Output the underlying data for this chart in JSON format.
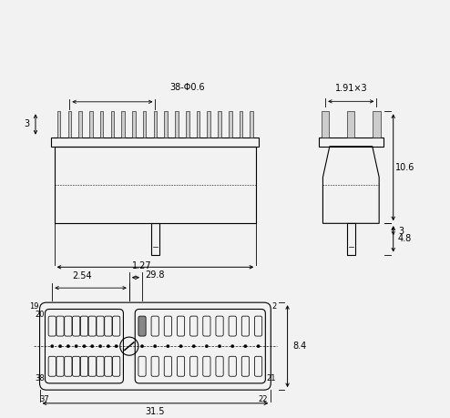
{
  "bg_color": "#f2f2f2",
  "line_color": "#000000",
  "dim_color": "#000000",
  "font_size": 7,
  "dimensions": {
    "front_pin_label": "38-Φ0.6",
    "front_height_label": "3",
    "front_width_label": "29.8",
    "side_width_label": "1.91×3",
    "side_height1_label": "10.6",
    "side_height2_label": "3",
    "side_height3_label": "4.8",
    "bottom_width_label": "31.5",
    "bottom_pitch1_label": "2.54",
    "bottom_pitch2_label": "1.27",
    "bottom_height_label": "8.4"
  }
}
